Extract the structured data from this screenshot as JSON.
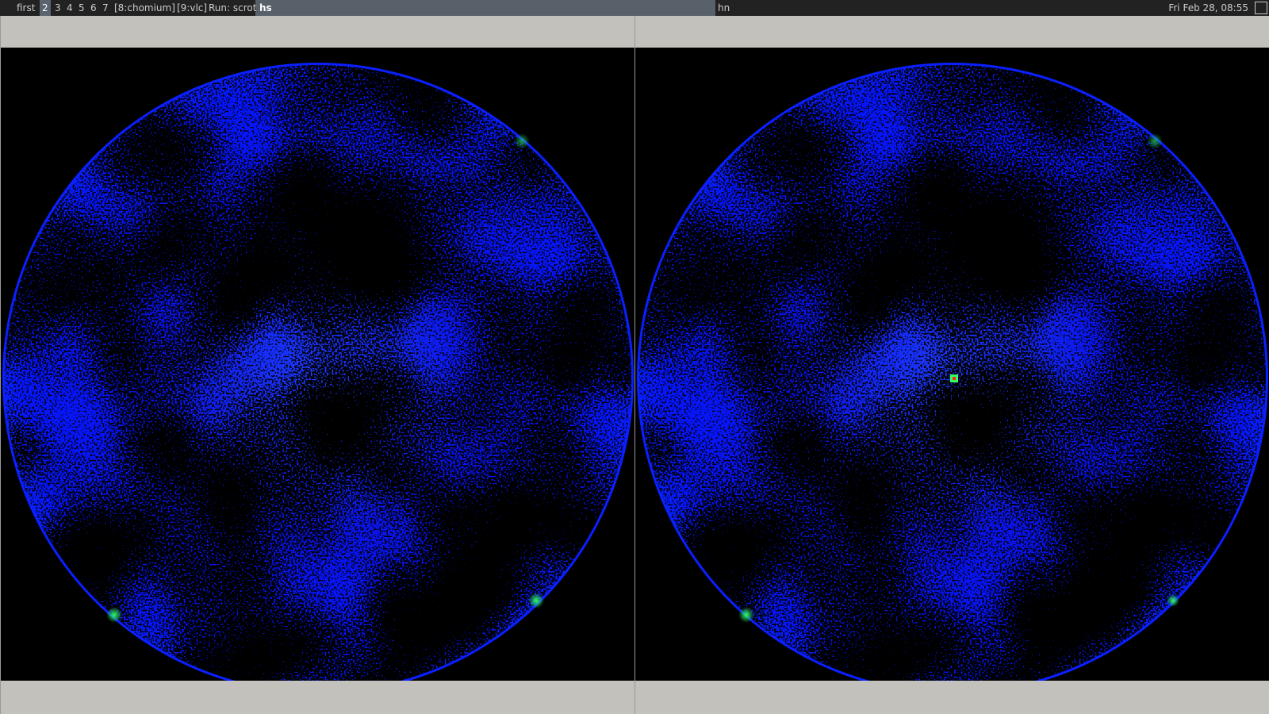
{
  "taskbar": {
    "workspaces": [
      "first",
      "2",
      "3",
      "4",
      "5",
      "6",
      "7",
      "[8:chomium]",
      "[9:vlc]"
    ],
    "run": "Run: scrot",
    "focused_title": "hs",
    "other_title": "hn",
    "clock": "Fri Feb 28, 08:55"
  }
}
